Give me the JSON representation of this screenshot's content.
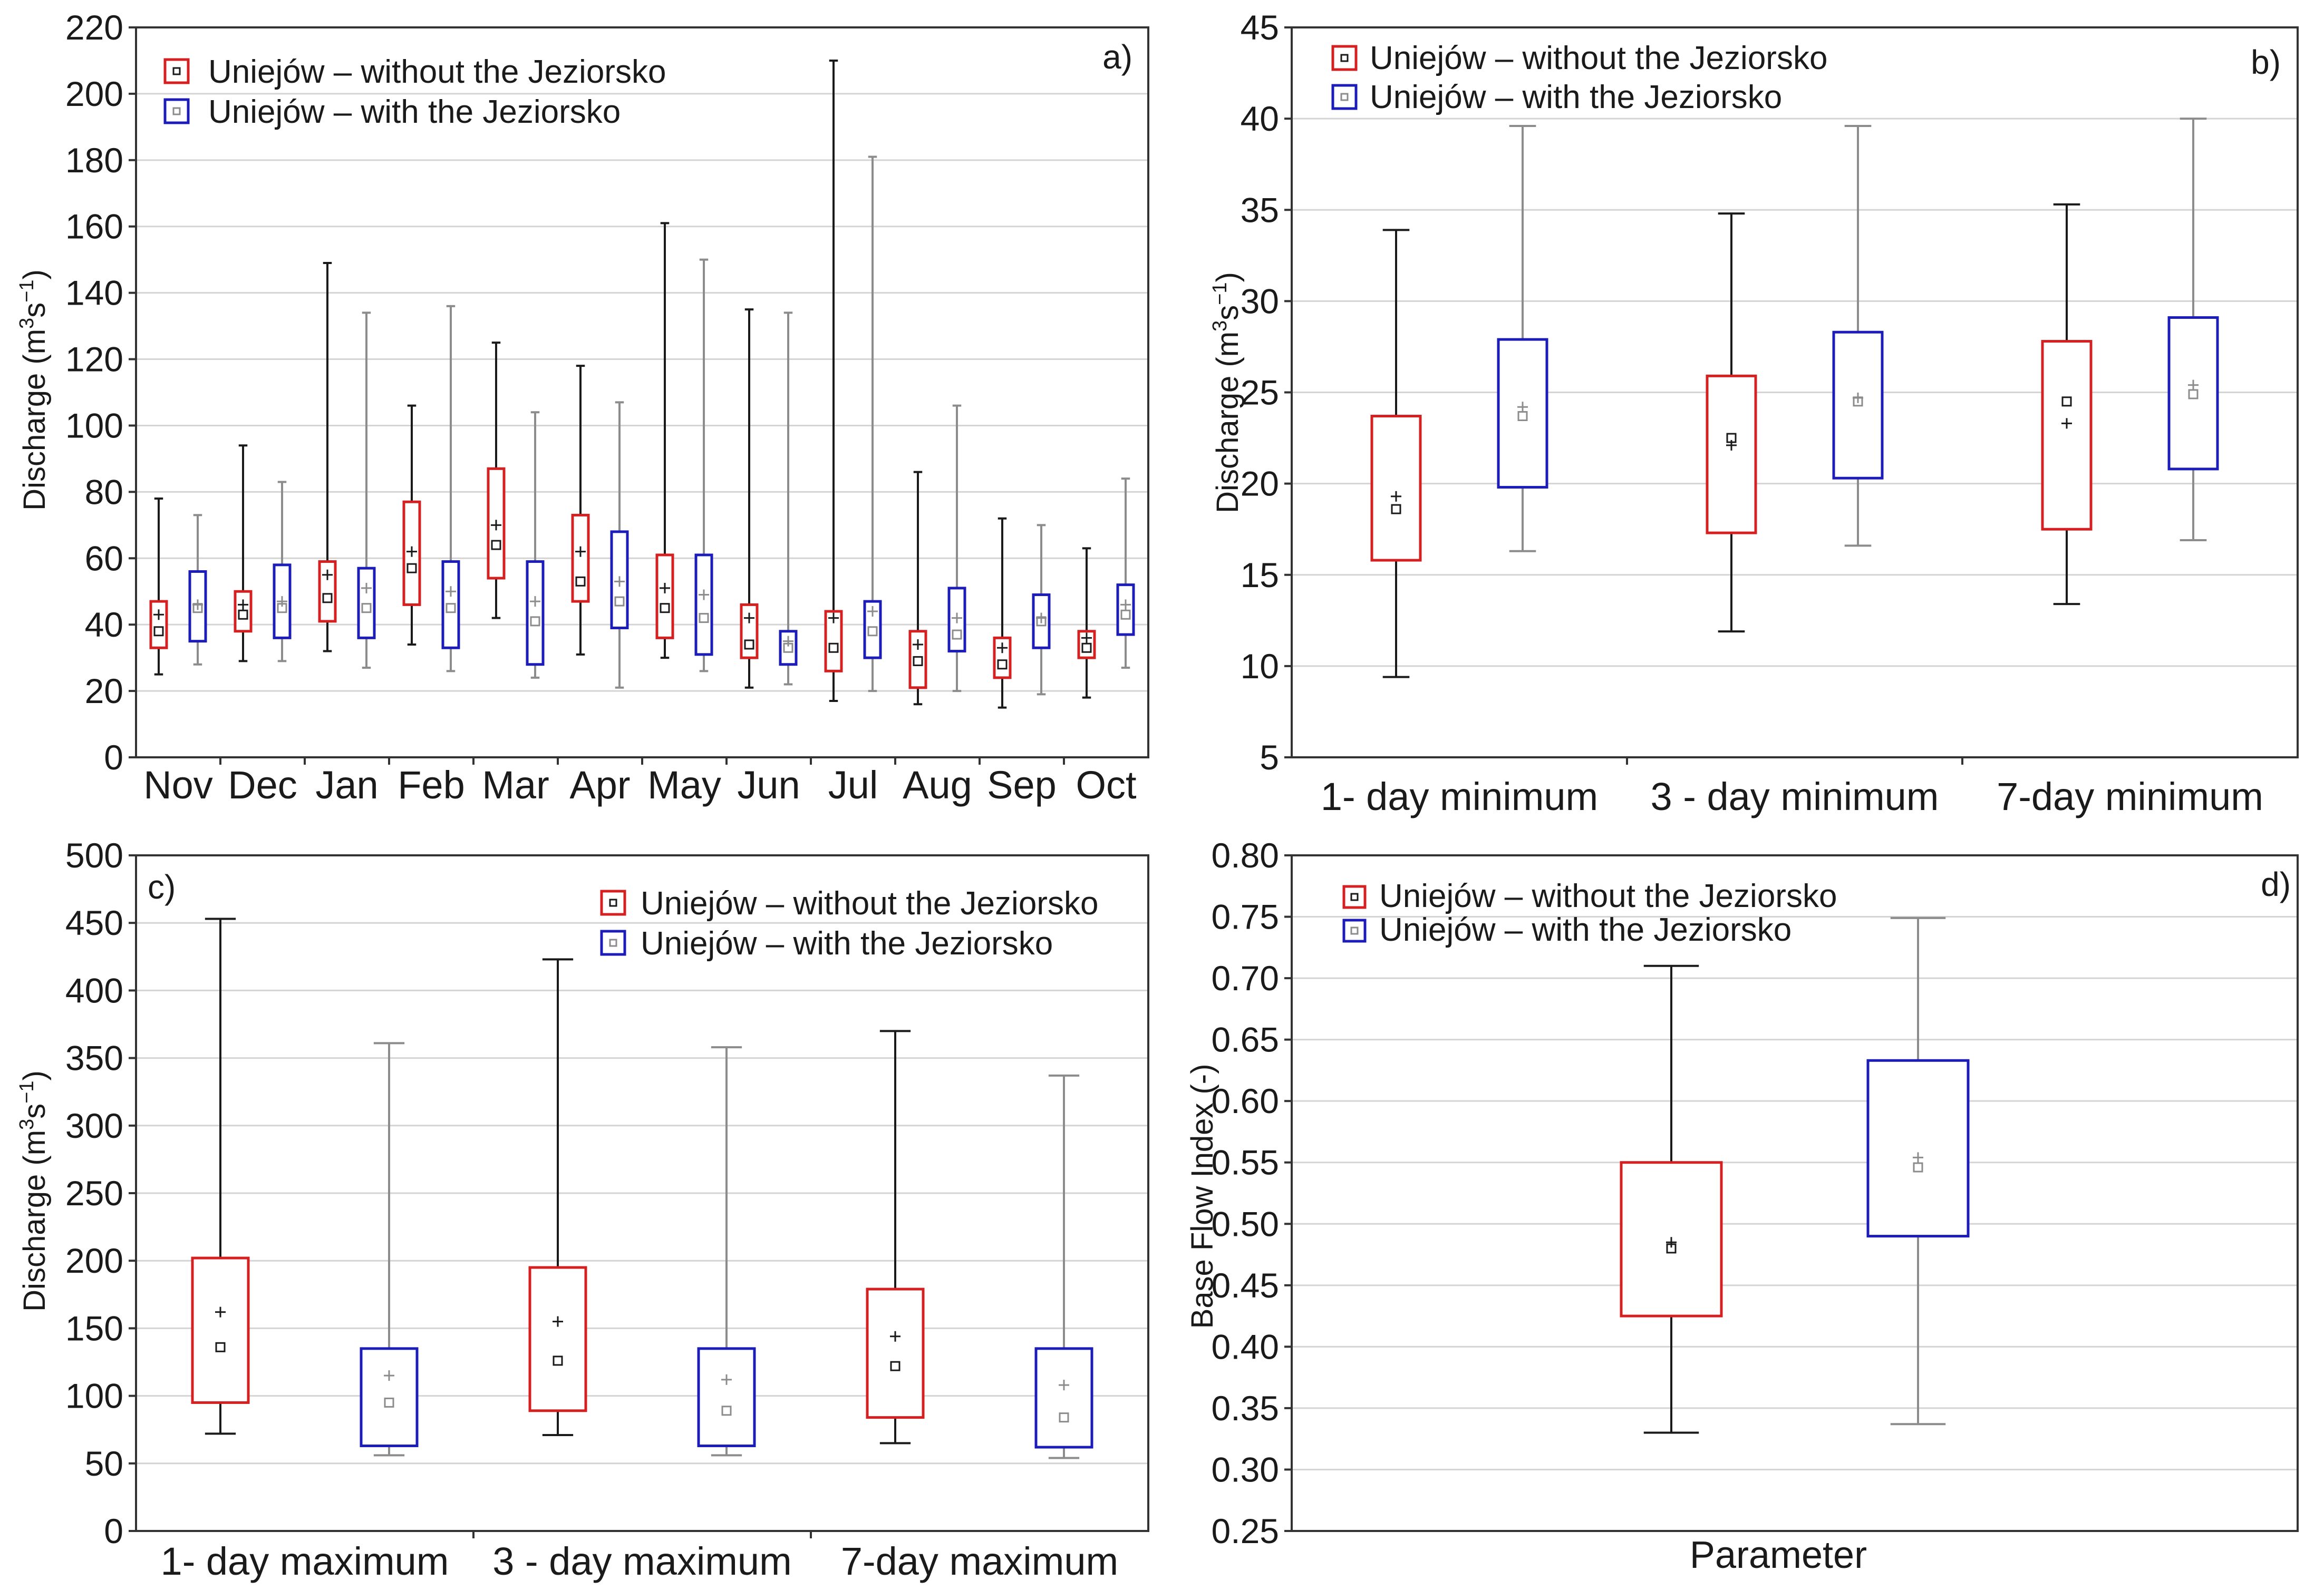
{
  "figure": {
    "series_labels": [
      "Uniejów – without the Jeziorsko",
      "Uniejów – with the Jeziorsko"
    ],
    "colors": {
      "without_box": "#d42020",
      "with_box": "#1c1cb8",
      "without_whisker": "#1a1a1a",
      "with_whisker": "#8c8c8c"
    }
  },
  "chart_data": [
    {
      "id": "a",
      "panel_label": "a)",
      "type": "box",
      "ylabel_main": "Discharge (m",
      "ylabel_sup1": "3",
      "ylabel_mid": "s",
      "ylabel_sup2": "−1",
      "ylabel_end": ")",
      "xlabel": "",
      "ylim": [
        0,
        220
      ],
      "yticks": [
        "0",
        "20",
        "40",
        "60",
        "80",
        "100",
        "120",
        "140",
        "160",
        "180",
        "200",
        "220"
      ],
      "legend_position": "top-left",
      "categories": [
        "Nov",
        "Dec",
        "Jan",
        "Feb",
        "Mar",
        "Apr",
        "May",
        "Jun",
        "Jul",
        "Aug",
        "Sep",
        "Oct"
      ],
      "series": [
        {
          "name": "Uniejów – without the Jeziorsko",
          "stats": [
            {
              "min": 25,
              "q1": 33,
              "median": 38,
              "mean": 43,
              "q3": 47,
              "max": 78
            },
            {
              "min": 29,
              "q1": 38,
              "median": 43,
              "mean": 46,
              "q3": 50,
              "max": 94
            },
            {
              "min": 32,
              "q1": 41,
              "median": 48,
              "mean": 55,
              "q3": 59,
              "max": 149
            },
            {
              "min": 34,
              "q1": 46,
              "median": 57,
              "mean": 62,
              "q3": 77,
              "max": 106
            },
            {
              "min": 42,
              "q1": 54,
              "median": 64,
              "mean": 70,
              "q3": 87,
              "max": 125
            },
            {
              "min": 31,
              "q1": 47,
              "median": 53,
              "mean": 62,
              "q3": 73,
              "max": 118
            },
            {
              "min": 30,
              "q1": 36,
              "median": 45,
              "mean": 51,
              "q3": 61,
              "max": 161
            },
            {
              "min": 21,
              "q1": 30,
              "median": 34,
              "mean": 42,
              "q3": 46,
              "max": 135
            },
            {
              "min": 17,
              "q1": 26,
              "median": 33,
              "mean": 42,
              "q3": 44,
              "max": 210
            },
            {
              "min": 16,
              "q1": 21,
              "median": 29,
              "mean": 34,
              "q3": 38,
              "max": 86
            },
            {
              "min": 15,
              "q1": 24,
              "median": 28,
              "mean": 33,
              "q3": 36,
              "max": 72
            },
            {
              "min": 18,
              "q1": 30,
              "median": 33,
              "mean": 36,
              "q3": 38,
              "max": 63
            }
          ]
        },
        {
          "name": "Uniejów – with the Jeziorsko",
          "stats": [
            {
              "min": 28,
              "q1": 35,
              "median": 45,
              "mean": 46,
              "q3": 56,
              "max": 73
            },
            {
              "min": 29,
              "q1": 36,
              "median": 45,
              "mean": 47,
              "q3": 58,
              "max": 83
            },
            {
              "min": 27,
              "q1": 36,
              "median": 45,
              "mean": 51,
              "q3": 57,
              "max": 134
            },
            {
              "min": 26,
              "q1": 33,
              "median": 45,
              "mean": 50,
              "q3": 59,
              "max": 136
            },
            {
              "min": 24,
              "q1": 28,
              "median": 41,
              "mean": 47,
              "q3": 59,
              "max": 104
            },
            {
              "min": 21,
              "q1": 39,
              "median": 47,
              "mean": 53,
              "q3": 68,
              "max": 107
            },
            {
              "min": 26,
              "q1": 31,
              "median": 42,
              "mean": 49,
              "q3": 61,
              "max": 150
            },
            {
              "min": 22,
              "q1": 28,
              "median": 33,
              "mean": 35,
              "q3": 38,
              "max": 134
            },
            {
              "min": 20,
              "q1": 30,
              "median": 38,
              "mean": 44,
              "q3": 47,
              "max": 181
            },
            {
              "min": 20,
              "q1": 32,
              "median": 37,
              "mean": 42,
              "q3": 51,
              "max": 106
            },
            {
              "min": 19,
              "q1": 33,
              "median": 41,
              "mean": 42,
              "q3": 49,
              "max": 70
            },
            {
              "min": 27,
              "q1": 37,
              "median": 43,
              "mean": 46,
              "q3": 52,
              "max": 84
            }
          ]
        }
      ]
    },
    {
      "id": "b",
      "panel_label": "b)",
      "type": "box",
      "ylabel_main": "Discharge (m",
      "ylabel_sup1": "3",
      "ylabel_mid": "s",
      "ylabel_sup2": "−1",
      "ylabel_end": ")",
      "xlabel": "",
      "ylim": [
        5,
        45
      ],
      "yticks": [
        "5",
        "10",
        "15",
        "20",
        "25",
        "30",
        "35",
        "40",
        "45"
      ],
      "legend_position": "top-left",
      "categories": [
        "1- day minimum",
        "3 - day minimum",
        "7-day minimum"
      ],
      "series": [
        {
          "name": "Uniejów – without the Jeziorsko",
          "stats": [
            {
              "min": 9.4,
              "q1": 15.8,
              "median": 18.6,
              "mean": 19.3,
              "q3": 23.7,
              "max": 33.9
            },
            {
              "min": 11.9,
              "q1": 17.3,
              "median": 22.5,
              "mean": 22.1,
              "q3": 25.9,
              "max": 34.8
            },
            {
              "min": 13.4,
              "q1": 17.5,
              "median": 24.5,
              "mean": 23.3,
              "q3": 27.8,
              "max": 35.3
            }
          ]
        },
        {
          "name": "Uniejów – with the Jeziorsko",
          "stats": [
            {
              "min": 16.3,
              "q1": 19.8,
              "median": 23.7,
              "mean": 24.2,
              "q3": 27.9,
              "max": 39.6
            },
            {
              "min": 16.6,
              "q1": 20.3,
              "median": 24.5,
              "mean": 24.7,
              "q3": 28.3,
              "max": 39.6
            },
            {
              "min": 16.9,
              "q1": 20.8,
              "median": 24.9,
              "mean": 25.4,
              "q3": 29.1,
              "max": 40.0
            }
          ]
        }
      ]
    },
    {
      "id": "c",
      "panel_label": "c)",
      "type": "box",
      "ylabel_main": "Discharge (m",
      "ylabel_sup1": "3",
      "ylabel_mid": "s",
      "ylabel_sup2": "−1",
      "ylabel_end": ")",
      "xlabel": "",
      "ylim": [
        0,
        500
      ],
      "yticks": [
        "0",
        "50",
        "100",
        "150",
        "200",
        "250",
        "300",
        "350",
        "400",
        "450",
        "500"
      ],
      "legend_position": "top-right",
      "categories": [
        "1- day maximum",
        "3 - day maximum",
        "7-day maximum"
      ],
      "series": [
        {
          "name": "Uniejów – without the Jeziorsko",
          "stats": [
            {
              "min": 72,
              "q1": 95,
              "median": 136,
              "mean": 162,
              "q3": 202,
              "max": 453
            },
            {
              "min": 71,
              "q1": 89,
              "median": 126,
              "mean": 155,
              "q3": 195,
              "max": 423
            },
            {
              "min": 65,
              "q1": 84,
              "median": 122,
              "mean": 144,
              "q3": 179,
              "max": 370
            }
          ]
        },
        {
          "name": "Uniejów – with the Jeziorsko",
          "stats": [
            {
              "min": 56,
              "q1": 63,
              "median": 95,
              "mean": 115,
              "q3": 135,
              "max": 361
            },
            {
              "min": 56,
              "q1": 63,
              "median": 89,
              "mean": 112,
              "q3": 135,
              "max": 358
            },
            {
              "min": 54,
              "q1": 62,
              "median": 84,
              "mean": 108,
              "q3": 135,
              "max": 337
            }
          ]
        }
      ]
    },
    {
      "id": "d",
      "panel_label": "d)",
      "type": "box",
      "ylabel_main": "Base Flow Index (-)",
      "ylabel_sup1": "",
      "ylabel_mid": "",
      "ylabel_sup2": "",
      "ylabel_end": "",
      "xlabel": "Parameter",
      "ylim": [
        0.25,
        0.8
      ],
      "yticks": [
        "0.25",
        "0.30",
        "0.35",
        "0.40",
        "0.45",
        "0.50",
        "0.55",
        "0.60",
        "0.65",
        "0.70",
        "0.75",
        "0.80"
      ],
      "legend_position": "top-left",
      "categories": [
        ""
      ],
      "series": [
        {
          "name": "Uniejów – without the Jeziorsko",
          "stats": [
            {
              "min": 0.33,
              "q1": 0.425,
              "median": 0.48,
              "mean": 0.485,
              "q3": 0.55,
              "max": 0.71
            }
          ]
        },
        {
          "name": "Uniejów – with the Jeziorsko",
          "stats": [
            {
              "min": 0.337,
              "q1": 0.49,
              "median": 0.546,
              "mean": 0.554,
              "q3": 0.633,
              "max": 0.749
            }
          ]
        }
      ]
    }
  ]
}
